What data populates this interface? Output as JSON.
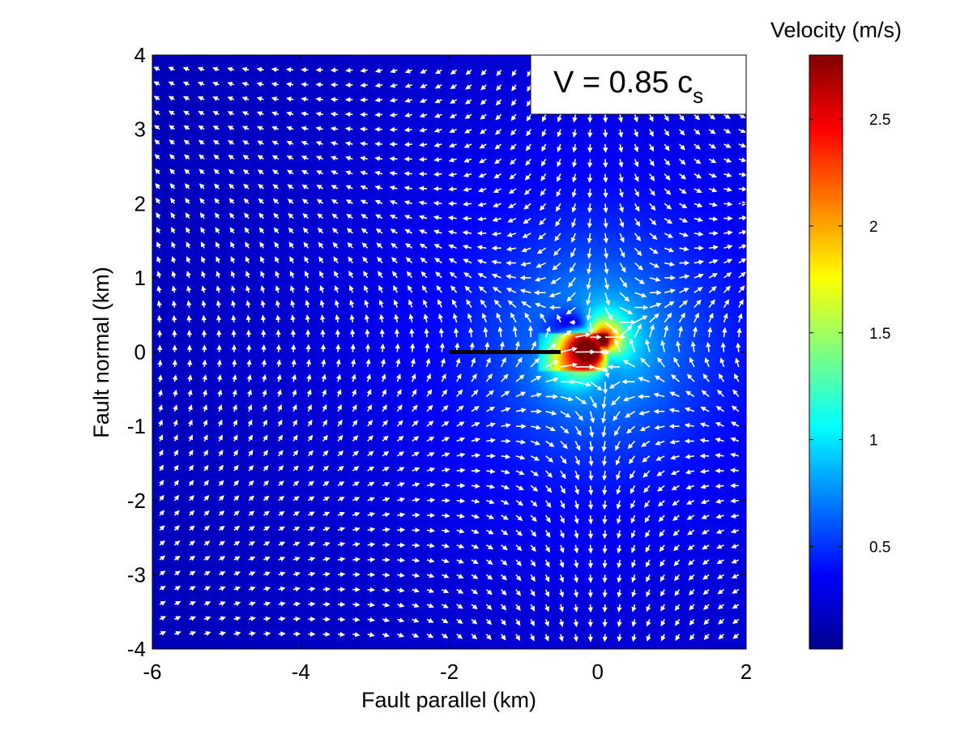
{
  "chart_data": {
    "type": "heatmap",
    "subtype": "filled contour with velocity vector field (quiver)",
    "xlabel": "Fault parallel (km)",
    "ylabel": "Fault normal (km)",
    "xlim": [
      -6,
      2
    ],
    "ylim": [
      -4,
      4
    ],
    "xticks": [
      -6,
      -4,
      -2,
      0,
      2
    ],
    "yticks": [
      -4,
      -3,
      -2,
      -1,
      0,
      1,
      2,
      3,
      4
    ],
    "xtick_labels": [
      "-6",
      "-4",
      "-2",
      "0",
      "2"
    ],
    "ytick_labels": [
      "-4",
      "-3",
      "-2",
      "-1",
      "0",
      "1",
      "2",
      "3",
      "4"
    ],
    "grid": false,
    "colormap": "jet",
    "colorbar": {
      "title": "Velocity (m/s)",
      "range": [
        0.02,
        2.8
      ],
      "ticks": [
        0.5,
        1,
        1.5,
        2,
        2.5
      ],
      "tick_labels": [
        "0.5",
        "1",
        "1.5",
        "2",
        "2.5"
      ],
      "placement": "right"
    },
    "annotation": {
      "text_main": "V = 0.85 c",
      "text_subscript": "s",
      "placement": "top-right"
    },
    "fault_segment": {
      "x": [
        -2.0,
        -0.5
      ],
      "y": [
        0,
        0
      ],
      "color": "#000000"
    },
    "field_peak": {
      "x": 0.0,
      "y": 0.1,
      "velocity": 2.8
    },
    "vector_grid": {
      "x_step": 0.2,
      "y_step": 0.2,
      "arrow_color": "#ffffff"
    }
  }
}
